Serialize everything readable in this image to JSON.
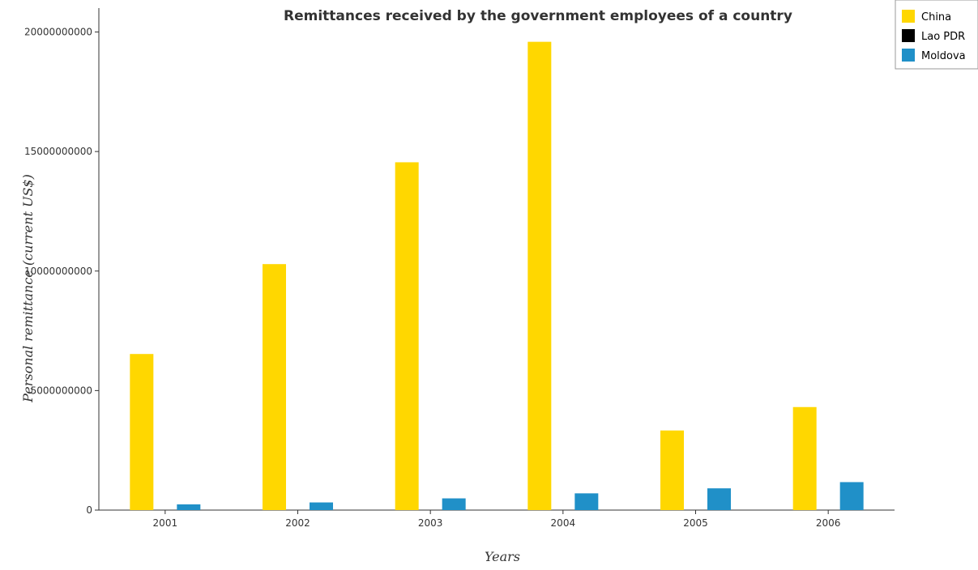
{
  "chart_data": {
    "type": "bar",
    "title": "Remittances received by the government employees of a country",
    "xlabel": "Years",
    "ylabel": "Personal remittance (current US$)",
    "categories": [
      "2001",
      "2002",
      "2003",
      "2004",
      "2005",
      "2006"
    ],
    "ylim": [
      0,
      21000000000
    ],
    "yticks": [
      0,
      5000000000,
      10000000000,
      15000000000,
      20000000000
    ],
    "ytick_labels": [
      "0",
      "5000000000",
      "10000000000",
      "15000000000",
      "20000000000"
    ],
    "grid": false,
    "legend_position": "top-right",
    "series": [
      {
        "name": "China",
        "color": "#FFD700",
        "values": [
          6530000000,
          10290000000,
          14550000000,
          19590000000,
          3330000000,
          4310000000
        ]
      },
      {
        "name": "Lao PDR",
        "color": "#000000",
        "values": [
          1000000,
          1000000,
          1000000,
          1000000,
          1000000,
          1000000
        ]
      },
      {
        "name": "Moldova",
        "color": "#2090C8",
        "values": [
          240000000,
          320000000,
          490000000,
          700000000,
          910000000,
          1170000000
        ]
      }
    ]
  }
}
